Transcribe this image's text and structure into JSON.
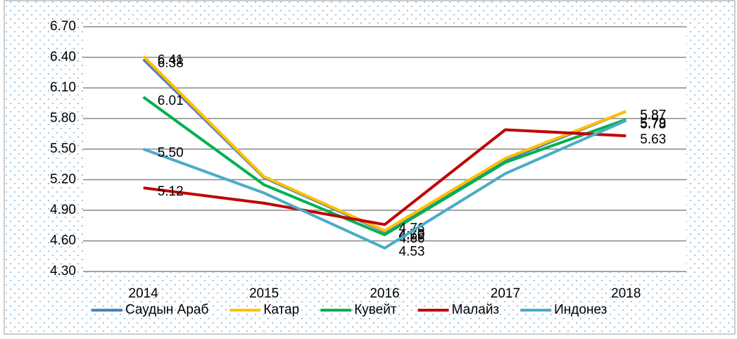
{
  "chart_data": {
    "type": "line",
    "categories": [
      "2014",
      "2015",
      "2016",
      "2017",
      "2018"
    ],
    "series": [
      {
        "name": "Саудын Араб",
        "color": "#4f81bd",
        "values": [
          6.38,
          5.22,
          4.69,
          5.39,
          5.87
        ],
        "value_labels": [
          "6.38",
          null,
          "4.69",
          null,
          "5.87"
        ]
      },
      {
        "name": "Катар",
        "color": "#ffc000",
        "values": [
          6.41,
          5.23,
          4.7,
          5.41,
          5.87
        ],
        "value_labels": [
          "6.41",
          null,
          "4.70",
          null,
          "5.87"
        ]
      },
      {
        "name": "Кувейт",
        "color": "#00b050",
        "values": [
          6.01,
          5.15,
          4.66,
          5.37,
          5.79
        ],
        "value_labels": [
          "6.01",
          null,
          "4.66",
          null,
          "5.79"
        ]
      },
      {
        "name": "Малайз",
        "color": "#c00000",
        "values": [
          5.12,
          4.97,
          4.76,
          5.69,
          5.63
        ],
        "value_labels": [
          "5.12",
          null,
          "4.76",
          null,
          "5.63"
        ]
      },
      {
        "name": "Индонез",
        "color": "#4bacc6",
        "values": [
          5.5,
          5.07,
          4.53,
          5.26,
          5.78
        ],
        "value_labels": [
          "5.50",
          null,
          "4.53",
          null,
          "5.78"
        ]
      }
    ],
    "ylim": [
      4.3,
      6.7
    ],
    "yticks": [
      {
        "value": 4.3,
        "label": "4.30"
      },
      {
        "value": 4.6,
        "label": "4.60"
      },
      {
        "value": 4.9,
        "label": "4.90"
      },
      {
        "value": 5.2,
        "label": "5.20"
      },
      {
        "value": 5.5,
        "label": "5.50"
      },
      {
        "value": 5.8,
        "label": "5.80"
      },
      {
        "value": 6.1,
        "label": "6.10"
      },
      {
        "value": 6.4,
        "label": "6.40"
      },
      {
        "value": 6.7,
        "label": "6.70"
      }
    ],
    "grid": true,
    "legend": "bottom"
  }
}
